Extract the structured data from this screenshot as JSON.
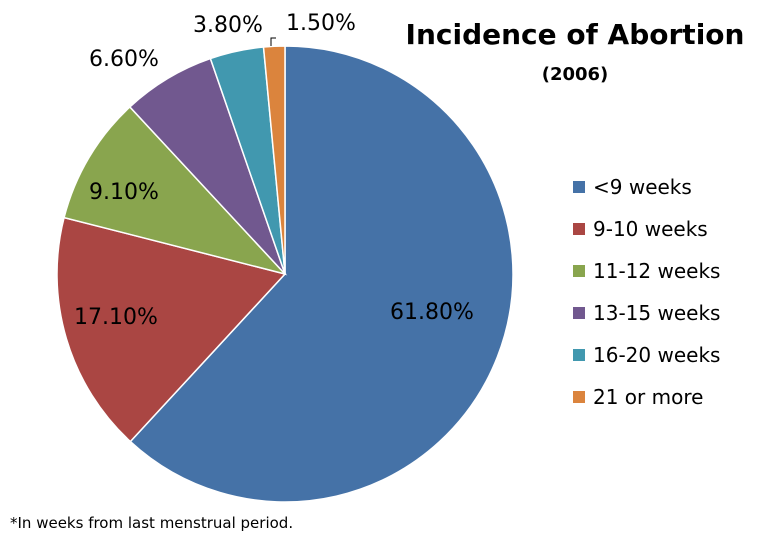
{
  "chart_data": {
    "type": "pie",
    "title": "Incidence of Abortion",
    "subtitle": "(2006)",
    "footnote": "*In weeks from last menstrual period.",
    "legend_position": "right",
    "slices": [
      {
        "label": "<9 weeks",
        "value": 61.8,
        "value_label": "61.80%",
        "color": "#4572A7"
      },
      {
        "label": "9-10 weeks",
        "value": 17.1,
        "value_label": "17.10%",
        "color": "#AA4643"
      },
      {
        "label": "11-12 weeks",
        "value": 9.1,
        "value_label": "9.10%",
        "color": "#89A54E"
      },
      {
        "label": "13-15 weeks",
        "value": 6.6,
        "value_label": "6.60%",
        "color": "#71588F"
      },
      {
        "label": "16-20 weeks",
        "value": 3.8,
        "value_label": "3.80%",
        "color": "#4198AF"
      },
      {
        "label": "21 or more",
        "value": 1.5,
        "value_label": "1.50%",
        "color": "#DB843D"
      }
    ]
  }
}
